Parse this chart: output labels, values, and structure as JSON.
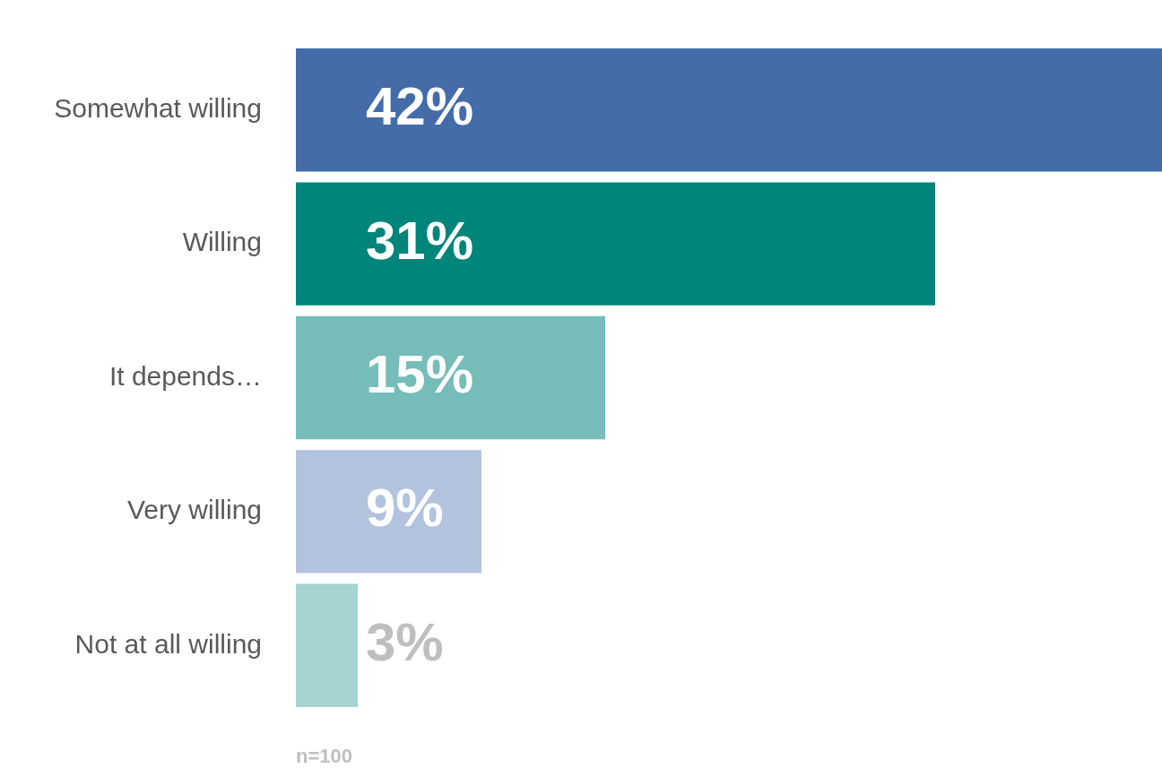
{
  "chart_data": {
    "type": "bar",
    "orientation": "horizontal",
    "categories": [
      "Somewhat willing",
      "Willing",
      "It depends…",
      "Very willing",
      "Not at all willing"
    ],
    "values": [
      42,
      31,
      15,
      9,
      3
    ],
    "colors": [
      "#436ca8",
      "#00857a",
      "#76bcb8",
      "#b3c3de",
      "#a6d4d2"
    ],
    "value_labels": [
      "42%",
      "31%",
      "15%",
      "9%",
      "3%"
    ],
    "annotations": [
      "n=100"
    ],
    "legend": false,
    "grid": false
  }
}
